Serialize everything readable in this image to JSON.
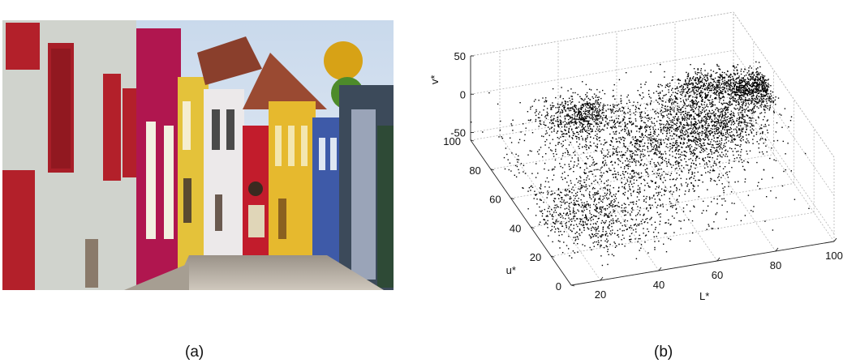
{
  "captions": {
    "left": "(a)",
    "right": "(b)"
  },
  "photo": {
    "subject": "cobblestone street with colorful houses"
  },
  "chart_data": {
    "type": "scatter",
    "projection": "3d",
    "title": "",
    "xlabel": "L*",
    "ylabel": "u*",
    "zlabel": "v*",
    "xlim": [
      10,
      100
    ],
    "ylim": [
      0,
      100
    ],
    "zlim": [
      -60,
      50
    ],
    "xticks": [
      "20",
      "40",
      "60",
      "80",
      "100"
    ],
    "yticks": [
      "0",
      "20",
      "40",
      "60",
      "80",
      "100"
    ],
    "zticks": [
      "-50",
      "0",
      "50"
    ],
    "grid": true,
    "marker_color": "#000000",
    "clusters": [
      {
        "L": [
          95,
          5
        ],
        "u": [
          70,
          5
        ],
        "v": [
          10,
          8
        ],
        "n": 700
      },
      {
        "L": [
          78,
          9
        ],
        "u": [
          58,
          8
        ],
        "v": [
          0,
          12
        ],
        "n": 900
      },
      {
        "L": [
          62,
          14
        ],
        "u": [
          55,
          15
        ],
        "v": [
          -5,
          12
        ],
        "n": 1000
      },
      {
        "L": [
          42,
          7
        ],
        "u": [
          85,
          6
        ],
        "v": [
          -20,
          8
        ],
        "n": 650
      },
      {
        "L": [
          40,
          20
        ],
        "u": [
          40,
          22
        ],
        "v": [
          -15,
          12
        ],
        "n": 1000
      },
      {
        "L": [
          25,
          8
        ],
        "u": [
          25,
          10
        ],
        "v": [
          -25,
          10
        ],
        "n": 500
      },
      {
        "L": [
          88,
          7
        ],
        "u": [
          96,
          4
        ],
        "v": [
          -30,
          8
        ],
        "n": 450
      }
    ]
  }
}
